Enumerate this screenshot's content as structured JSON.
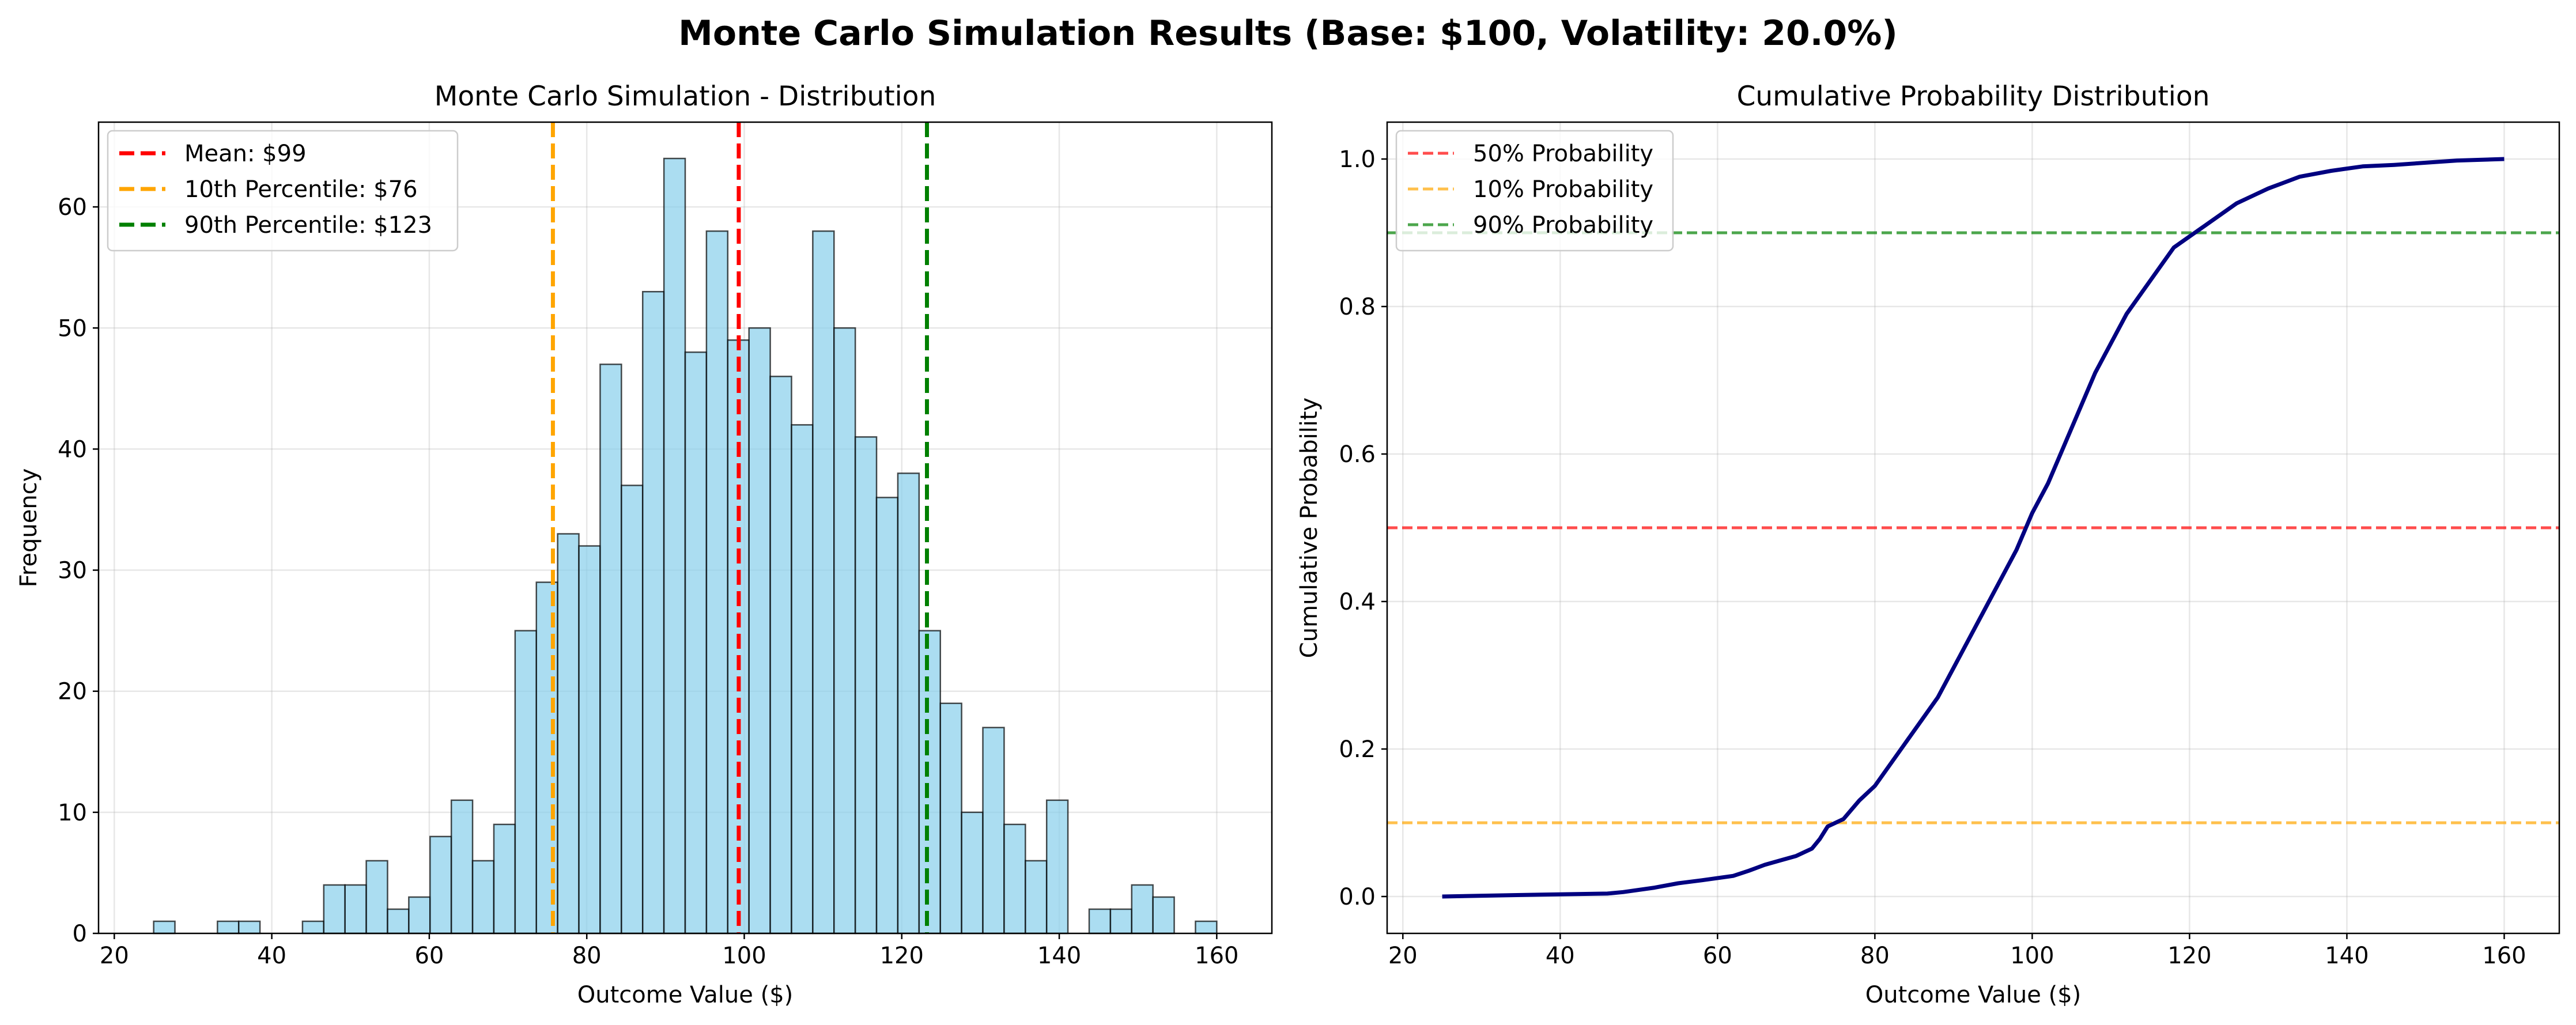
{
  "figure_title": "Monte Carlo Simulation Results (Base: $100, Volatility: 20.0%)",
  "colors": {
    "bar_fill": "#87ceeb",
    "bar_edge": "#000000",
    "mean": "#ff0000",
    "p10": "#ffa500",
    "p90": "#008000",
    "cdf_line": "#000080",
    "ref50": "#ff0000",
    "ref10": "#ffa500",
    "ref90": "#008000"
  },
  "chart_data": [
    {
      "type": "bar",
      "subtype": "histogram",
      "title": "Monte Carlo Simulation - Distribution",
      "xlabel": "Outcome Value ($)",
      "ylabel": "Frequency",
      "xlim": [
        18,
        167
      ],
      "ylim": [
        0,
        67
      ],
      "xticks": [
        20,
        40,
        60,
        80,
        100,
        120,
        140,
        160
      ],
      "yticks": [
        0,
        10,
        20,
        30,
        40,
        50,
        60
      ],
      "grid": true,
      "legend_position": "upper left",
      "bins_start": 25,
      "bin_width": 2.7,
      "counts": [
        1,
        0,
        0,
        1,
        1,
        0,
        0,
        1,
        4,
        4,
        6,
        2,
        3,
        8,
        11,
        6,
        9,
        25,
        29,
        33,
        32,
        47,
        37,
        53,
        64,
        48,
        58,
        49,
        50,
        46,
        42,
        58,
        50,
        41,
        36,
        38,
        25,
        19,
        10,
        17,
        9,
        6,
        11,
        0,
        2,
        2,
        4,
        3,
        0,
        1
      ],
      "vlines": [
        {
          "label": "Mean: $99",
          "x": 99.3,
          "color_key": "mean"
        },
        {
          "label": "10th Percentile: $76",
          "x": 75.7,
          "color_key": "p10"
        },
        {
          "label": "90th Percentile: $123",
          "x": 123.2,
          "color_key": "p90"
        }
      ]
    },
    {
      "type": "line",
      "title": "Cumulative Probability Distribution",
      "xlabel": "Outcome Value ($)",
      "ylabel": "Cumulative Probability",
      "xlim": [
        18,
        167
      ],
      "ylim": [
        -0.05,
        1.05
      ],
      "xticks": [
        20,
        40,
        60,
        80,
        100,
        120,
        140,
        160
      ],
      "yticks": [
        0.0,
        0.2,
        0.4,
        0.6,
        0.8,
        1.0
      ],
      "ytick_labels": [
        "0.0",
        "0.2",
        "0.4",
        "0.6",
        "0.8",
        "1.0"
      ],
      "grid": true,
      "legend_position": "upper left",
      "series": [
        {
          "x": [
            25,
            35,
            46,
            48,
            52,
            55,
            58,
            62,
            64,
            66,
            68,
            70,
            72,
            73,
            74,
            76,
            78,
            80,
            82,
            84,
            86,
            88,
            90,
            92,
            94,
            96,
            98,
            100,
            102,
            104,
            106,
            108,
            110,
            112,
            114,
            116,
            118,
            120,
            122,
            124,
            126,
            128,
            130,
            132,
            134,
            138,
            142,
            146,
            150,
            154,
            160
          ],
          "y": [
            0.0,
            0.002,
            0.004,
            0.006,
            0.012,
            0.018,
            0.022,
            0.028,
            0.035,
            0.043,
            0.049,
            0.055,
            0.065,
            0.078,
            0.095,
            0.105,
            0.13,
            0.15,
            0.18,
            0.21,
            0.24,
            0.27,
            0.31,
            0.35,
            0.39,
            0.43,
            0.47,
            0.52,
            0.56,
            0.61,
            0.66,
            0.71,
            0.75,
            0.79,
            0.82,
            0.85,
            0.88,
            0.895,
            0.91,
            0.925,
            0.94,
            0.95,
            0.96,
            0.968,
            0.976,
            0.984,
            0.99,
            0.992,
            0.995,
            0.998,
            1.0
          ]
        }
      ],
      "hlines": [
        {
          "label": "50% Probability",
          "y": 0.5,
          "color_key": "ref50"
        },
        {
          "label": "10% Probability",
          "y": 0.1,
          "color_key": "ref10"
        },
        {
          "label": "90% Probability",
          "y": 0.9,
          "color_key": "ref90"
        }
      ]
    }
  ]
}
